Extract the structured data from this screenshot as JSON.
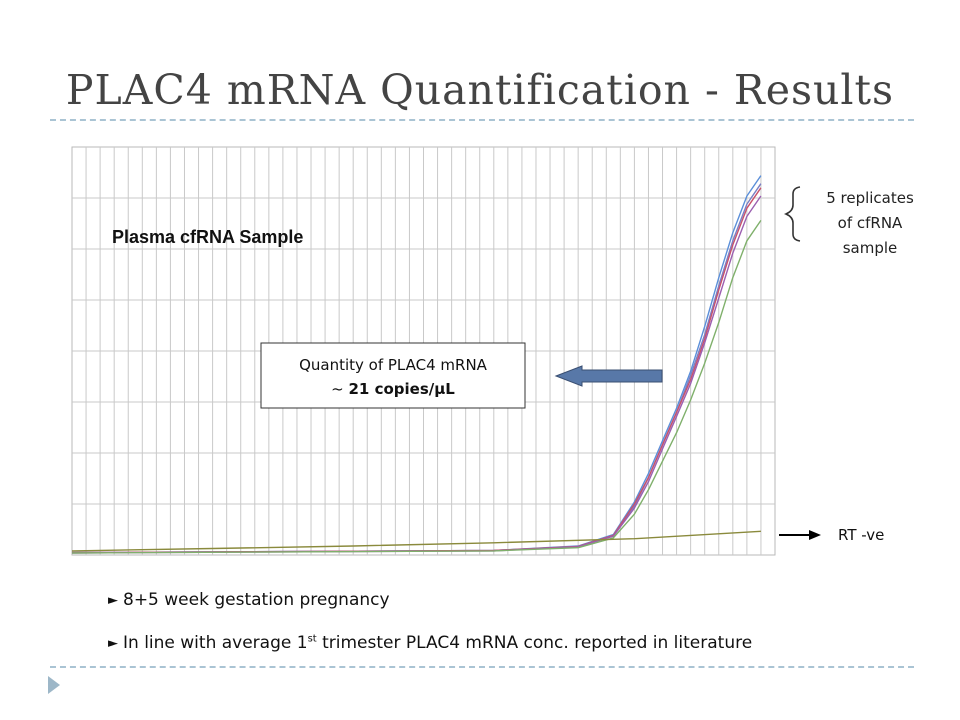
{
  "slide": {
    "title": "PLAC4 mRNA Quantification - Results"
  },
  "annotations": {
    "sample_label": "Plasma cfRNA Sample",
    "quantity_line1": "Quantity of PLAC4 mRNA",
    "quantity_prefix": "~ ",
    "quantity_value": "21 copies/µL",
    "replicates_line1": "5 replicates",
    "replicates_line2": "of cfRNA",
    "replicates_line3": "sample",
    "rt_label": "RT -ve"
  },
  "bullets": {
    "marker": "►",
    "item1": "8+5 week gestation pregnancy",
    "item2_before": "In line with average 1",
    "item2_sup": "st",
    "item2_after": " trimester PLAC4 mRNA conc. reported in literature"
  },
  "chart_data": {
    "type": "line",
    "title": "",
    "xlabel": "",
    "ylabel": "",
    "xlim": [
      0,
      50
    ],
    "ylim": [
      0,
      100
    ],
    "grid": true,
    "grid_x_count": 50,
    "grid_y_count": 8,
    "series": [
      {
        "color": "#5b8fd9",
        "values": [
          [
            0,
            0.6
          ],
          [
            30,
            1.1
          ],
          [
            36,
            2.2
          ],
          [
            38.5,
            5
          ],
          [
            40,
            13
          ],
          [
            41,
            20
          ],
          [
            42,
            28
          ],
          [
            43,
            36
          ],
          [
            44,
            45
          ],
          [
            45,
            56
          ],
          [
            46,
            68
          ],
          [
            47,
            79
          ],
          [
            48,
            88
          ],
          [
            49,
            93
          ]
        ]
      },
      {
        "color": "#7a7fc4",
        "values": [
          [
            0,
            0.6
          ],
          [
            30,
            1.1
          ],
          [
            36,
            2.1
          ],
          [
            38.5,
            4.8
          ],
          [
            40,
            12
          ],
          [
            41,
            19
          ],
          [
            42,
            27
          ],
          [
            43,
            35
          ],
          [
            44,
            44
          ],
          [
            45,
            54
          ],
          [
            46,
            66
          ],
          [
            47,
            77
          ],
          [
            48,
            86
          ],
          [
            49,
            91
          ]
        ]
      },
      {
        "color": "#c8526c",
        "values": [
          [
            0,
            0.6
          ],
          [
            30,
            1.1
          ],
          [
            36,
            2.1
          ],
          [
            38.5,
            4.8
          ],
          [
            40,
            12.5
          ],
          [
            41,
            19
          ],
          [
            42,
            27
          ],
          [
            43,
            35
          ],
          [
            44,
            43
          ],
          [
            45,
            53
          ],
          [
            46,
            65
          ],
          [
            47,
            76
          ],
          [
            48,
            85
          ],
          [
            49,
            90
          ]
        ]
      },
      {
        "color": "#9b5fb0",
        "values": [
          [
            0,
            0.5
          ],
          [
            30,
            1.0
          ],
          [
            36,
            2.0
          ],
          [
            38.5,
            4.6
          ],
          [
            40,
            11.5
          ],
          [
            41,
            18
          ],
          [
            42,
            26
          ],
          [
            43,
            34
          ],
          [
            44,
            42
          ],
          [
            45,
            52
          ],
          [
            46,
            63
          ],
          [
            47,
            74
          ],
          [
            48,
            83
          ],
          [
            49,
            88
          ]
        ]
      },
      {
        "color": "#7fb06b",
        "values": [
          [
            0,
            0.5
          ],
          [
            30,
            1.0
          ],
          [
            36,
            1.8
          ],
          [
            38.5,
            4.2
          ],
          [
            40,
            10
          ],
          [
            41,
            16
          ],
          [
            42,
            23
          ],
          [
            43,
            30
          ],
          [
            44,
            38
          ],
          [
            45,
            47
          ],
          [
            46,
            57
          ],
          [
            47,
            68
          ],
          [
            48,
            77
          ],
          [
            49,
            82
          ]
        ]
      },
      {
        "color": "#8a8a3c",
        "values": [
          [
            0,
            1.0
          ],
          [
            10,
            1.6
          ],
          [
            20,
            2.2
          ],
          [
            30,
            3.0
          ],
          [
            40,
            4.0
          ],
          [
            49,
            5.8
          ]
        ]
      }
    ]
  }
}
